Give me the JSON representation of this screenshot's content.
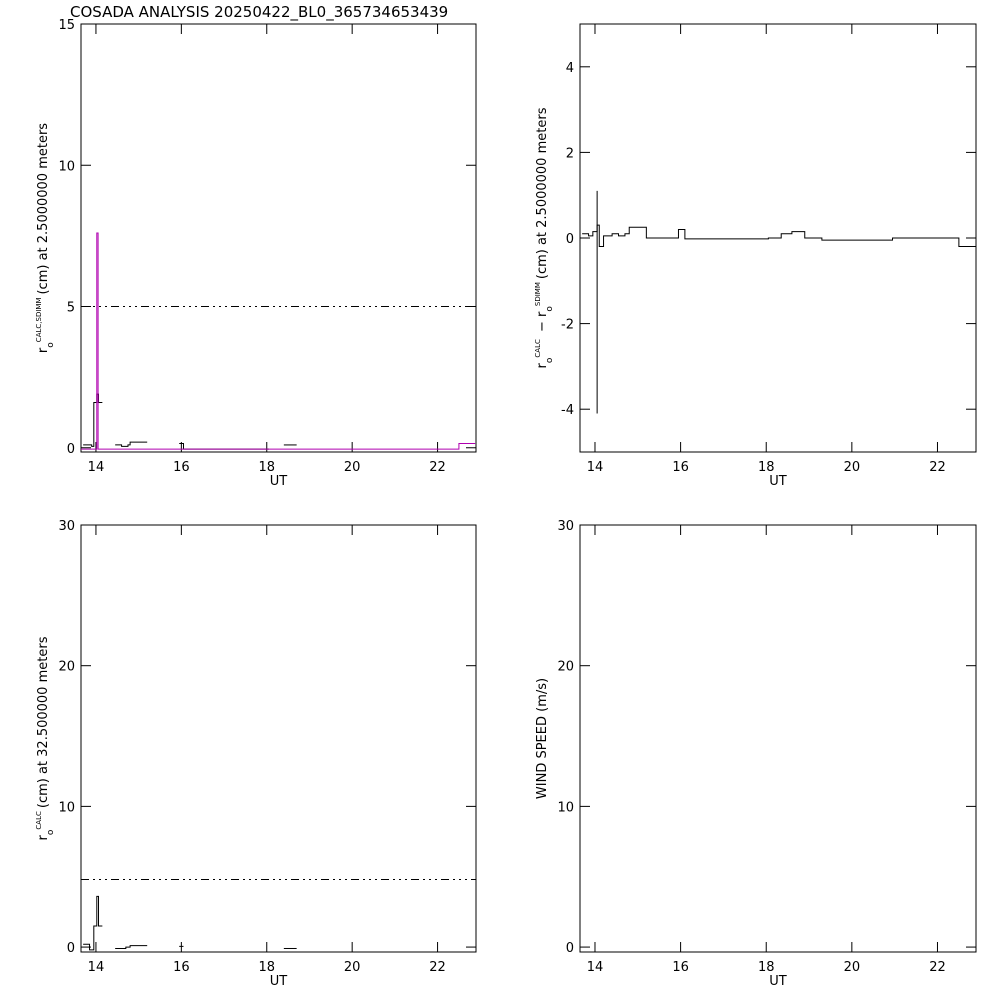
{
  "title": "COSADA ANALYSIS 20250422_BL0_365734653439",
  "chart_data": [
    {
      "type": "line",
      "xlabel": "UT",
      "ylabel": [
        {
          "text": "r",
          "role": "base"
        },
        {
          "text": "o",
          "role": "sub"
        },
        {
          "text": "CALC,SDIMM",
          "role": "sup"
        },
        {
          "text": "(cm)  at  2.5000000 meters",
          "role": "base"
        }
      ],
      "xlim": [
        13.65,
        22.9
      ],
      "xticks": [
        14,
        16,
        18,
        20,
        22
      ],
      "ylim": [
        -0.15,
        15
      ],
      "yticks": [
        0,
        5,
        10,
        15
      ],
      "series": [
        {
          "color": "#000000",
          "step": true,
          "x": [
            13.7,
            13.9,
            13.95,
            14.02,
            14.06,
            14.15,
            14.45,
            14.6,
            14.75,
            14.8,
            15.2,
            15.95,
            16.05,
            18.05,
            18.4,
            18.7
          ],
          "values": [
            0.1,
            0.05,
            1.6,
            1.9,
            1.6,
            null,
            0.1,
            0.05,
            0.1,
            0.2,
            null,
            0.15,
            -0.05,
            null,
            0.1,
            null
          ]
        },
        {
          "color": "#b000b0",
          "step": true,
          "x": [
            13.65,
            14.02,
            14.05,
            22.5,
            22.88
          ],
          "values": [
            -0.05,
            7.6,
            -0.05,
            0.15,
            0.15
          ]
        },
        {
          "color": "#000000",
          "dash": true,
          "x": [
            13.65,
            22.9
          ],
          "values": [
            5,
            5
          ]
        }
      ]
    },
    {
      "type": "line",
      "xlabel": "UT",
      "ylabel": [
        {
          "text": "r",
          "role": "base"
        },
        {
          "text": "o",
          "role": "sub"
        },
        {
          "text": "CALC",
          "role": "sup"
        },
        {
          "text": " − r",
          "role": "base"
        },
        {
          "text": "o",
          "role": "sub"
        },
        {
          "text": "SDIMM",
          "role": "sup"
        },
        {
          "text": "(cm)  at  2.5000000 meters",
          "role": "base"
        }
      ],
      "xlim": [
        13.65,
        22.9
      ],
      "xticks": [
        14,
        16,
        18,
        20,
        22
      ],
      "ylim": [
        -5,
        5
      ],
      "yticks": [
        -4,
        -2,
        0,
        2,
        4
      ],
      "series": [
        {
          "color": "#000000",
          "step": true,
          "x": [
            13.7,
            13.85,
            13.95,
            14.05,
            14.1,
            14.2,
            14.4,
            14.55,
            14.7,
            14.8,
            15.2,
            15.95,
            16.1,
            18.05,
            18.35,
            18.6,
            18.9,
            19.3,
            20.95,
            22.5,
            22.9
          ],
          "values": [
            0.1,
            0.05,
            0.15,
            0.3,
            -0.2,
            0.05,
            0.1,
            0.05,
            0.1,
            0.25,
            0.0,
            0.2,
            -0.02,
            0.0,
            0.1,
            0.15,
            0.0,
            -0.05,
            0.0,
            -0.2,
            -0.2
          ]
        },
        {
          "color": "#000000",
          "x": [
            14.05,
            14.05
          ],
          "values": [
            -4.1,
            1.1
          ]
        }
      ]
    },
    {
      "type": "line",
      "xlabel": "UT",
      "ylabel": [
        {
          "text": "r",
          "role": "base"
        },
        {
          "text": "o",
          "role": "sub"
        },
        {
          "text": "CALC",
          "role": "sup"
        },
        {
          "text": "(cm)  at  32.500000 meters",
          "role": "base"
        }
      ],
      "xlim": [
        13.65,
        22.9
      ],
      "xticks": [
        14,
        16,
        18,
        20,
        22
      ],
      "ylim": [
        -0.35,
        30
      ],
      "yticks": [
        0,
        10,
        20,
        30
      ],
      "series": [
        {
          "color": "#000000",
          "step": true,
          "x": [
            13.7,
            13.85,
            13.95,
            14.02,
            14.06,
            14.15,
            14.45,
            14.7,
            14.8,
            15.2,
            15.95,
            16.05,
            18.4,
            18.7
          ],
          "values": [
            0.2,
            -0.2,
            1.5,
            3.6,
            1.5,
            null,
            -0.1,
            0.0,
            0.1,
            null,
            0.05,
            null,
            -0.1,
            null
          ]
        },
        {
          "color": "#000000",
          "dash": true,
          "x": [
            13.65,
            22.9
          ],
          "values": [
            4.8,
            4.8
          ]
        }
      ]
    },
    {
      "type": "line",
      "xlabel": "UT",
      "ylabel": [
        {
          "text": "WIND SPEED (m/s)",
          "role": "base"
        }
      ],
      "xlim": [
        13.65,
        22.9
      ],
      "xticks": [
        14,
        16,
        18,
        20,
        22
      ],
      "ylim": [
        -0.35,
        30
      ],
      "yticks": [
        0,
        10,
        20,
        30
      ],
      "series": []
    }
  ]
}
